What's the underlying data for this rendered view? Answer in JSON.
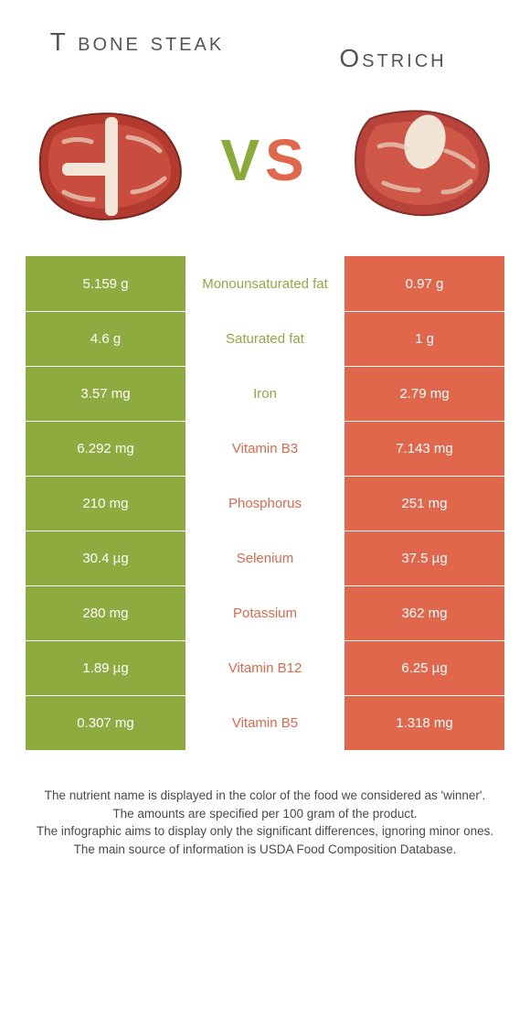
{
  "colors": {
    "left": "#8dab3f",
    "right": "#e0674b",
    "text": "#4a4a4a",
    "white": "#ffffff"
  },
  "header": {
    "left_title": "T bone steak",
    "right_title": "Ostrich",
    "vs_v": "V",
    "vs_s": "S"
  },
  "rows": [
    {
      "left": "5.159 g",
      "label": "Monounsaturated fat",
      "right": "0.97 g",
      "winner": "left"
    },
    {
      "left": "4.6 g",
      "label": "Saturated fat",
      "right": "1 g",
      "winner": "left"
    },
    {
      "left": "3.57 mg",
      "label": "Iron",
      "right": "2.79 mg",
      "winner": "left"
    },
    {
      "left": "6.292 mg",
      "label": "Vitamin B3",
      "right": "7.143 mg",
      "winner": "right"
    },
    {
      "left": "210 mg",
      "label": "Phosphorus",
      "right": "251 mg",
      "winner": "right"
    },
    {
      "left": "30.4 µg",
      "label": "Selenium",
      "right": "37.5 µg",
      "winner": "right"
    },
    {
      "left": "280 mg",
      "label": "Potassium",
      "right": "362 mg",
      "winner": "right"
    },
    {
      "left": "1.89 µg",
      "label": "Vitamin B12",
      "right": "6.25 µg",
      "winner": "right"
    },
    {
      "left": "0.307 mg",
      "label": "Vitamin B5",
      "right": "1.318 mg",
      "winner": "right"
    }
  ],
  "footer": {
    "line1": "The nutrient name is displayed in the color of the food we considered as 'winner'.",
    "line2": "The amounts are specified per 100 gram of the product.",
    "line3": "The infographic aims to display only the significant differences, ignoring minor ones.",
    "line4": "The main source of information is USDA Food Composition Database."
  }
}
